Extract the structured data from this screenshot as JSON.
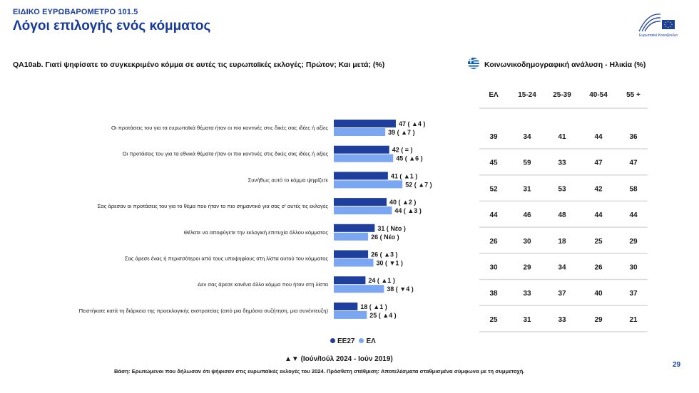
{
  "header": {
    "kicker": "ΕΙΔΙΚΟ ΕΥΡΩΒΑΡΟΜΕΤΡΟ 101.5",
    "title": "Λόγοι επιλογής ενός κόμματος",
    "logo_caption": "Ευρωπαϊκό Κοινοβούλιο"
  },
  "question": "QA10ab. Γιατί ψηφίσατε το συγκεκριμένο κόμμα σε αυτές τις ευρωπαϊκές εκλογές; Πρώτον; Και μετά; (%)",
  "table_title": "Κοινωνικοδημογραφική ανάλυση - Ηλικία (%)",
  "colors": {
    "eu27": "#1f3f9e",
    "el": "#7aa6f2",
    "title": "#16399a",
    "rule": "#d9d9d9"
  },
  "chart_data": {
    "type": "bar",
    "orientation": "horizontal",
    "categories": [
      "Οι προτάσεις του για τα ευρωπαϊκά θέματα ήταν οι πιο κοντινές στις δικές σας ιδέες ή αξίες",
      "Οι προτάσεις του για τα εθνικά θέματα ήταν οι πιο κοντινές στις δικές σας ιδέες ή αξίες",
      "Συνήθως αυτό το κόμμα ψηφίζετε",
      "Σας άρεσαν οι προτάσεις του για το θέμα που ήταν το πιο σημαντικό για σας σ' αυτές τις εκλογές",
      "Θέλατε να αποφύγετε την εκλογική επιτυχία άλλου κόμματος",
      "Σας άρεσε ένας ή περισσότεροι από τους υποψηφίους στη λίστα αυτού του κόμματος",
      "Δεν σας άρεσε κανένα άλλο κόμμα που ήταν στη λίστα",
      "Πειστήκατε κατά τη διάρκεια της προεκλογικής εκστρατείας (από μια δημόσια συζήτηση, μια συνέντευξη)"
    ],
    "series": [
      {
        "name": "ΕΕ27",
        "values": [
          47,
          42,
          41,
          40,
          31,
          26,
          24,
          18
        ],
        "labels": [
          "47 ( ▲4 )",
          "42 ( = )",
          "41 ( ▲1 )",
          "40 ( ▲2 )",
          "31 ( Νέο )",
          "26 ( ▲3 )",
          "24 ( ▲1 )",
          "18 ( ▲1 )"
        ]
      },
      {
        "name": "ΕΛ",
        "values": [
          39,
          45,
          52,
          44,
          26,
          30,
          38,
          25
        ],
        "labels": [
          "39 ( ▲7 )",
          "45 ( ▲6 )",
          "52 ( ▲7 )",
          "44 ( ▲3 )",
          "26 ( Νέο )",
          "30 ( ▼1 )",
          "38 ( ▼4 )",
          "25 ( ▲4 )"
        ]
      }
    ],
    "xlim": [
      0,
      100
    ],
    "legend": "bottom-center",
    "table": {
      "headers": [
        "ΕΛ",
        "15-24",
        "25-39",
        "40-54",
        "55 +"
      ],
      "rows": [
        [
          39,
          34,
          41,
          44,
          36
        ],
        [
          45,
          59,
          33,
          47,
          47
        ],
        [
          52,
          31,
          53,
          42,
          58
        ],
        [
          44,
          46,
          48,
          44,
          44
        ],
        [
          26,
          30,
          18,
          25,
          29
        ],
        [
          30,
          29,
          34,
          26,
          30
        ],
        [
          38,
          33,
          37,
          40,
          37
        ],
        [
          25,
          31,
          33,
          29,
          21
        ]
      ]
    }
  },
  "legend_items": {
    "eu27": "ΕΕ27",
    "el": "ΕΛ"
  },
  "trend_note": "▲▼ (Ιούν/Ιούλ 2024 - Ιούν 2019)",
  "base_note": "Βάση: Ερωτώμενοι που δήλωσαν ότι ψήφισαν στις ευρωπαϊκές εκλογές του 2024. Πρόσθετη στάθμιση: Αποτελέσματα σταθμισμένα σύμφωνα με τη συμμετοχή.",
  "page_number": "29"
}
